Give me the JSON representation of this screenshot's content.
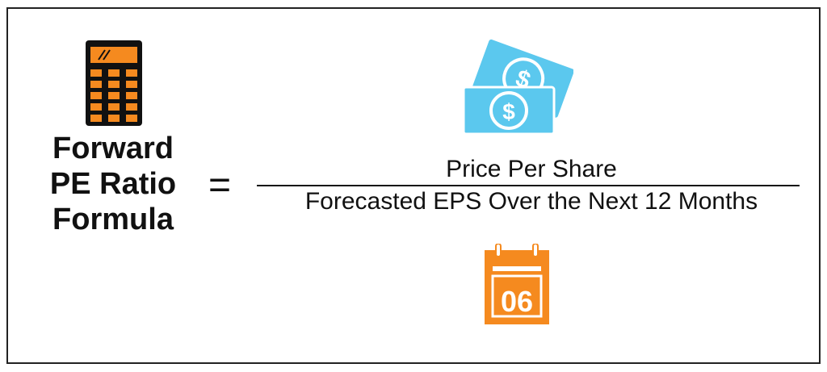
{
  "formula": {
    "lhs_lines": [
      "Forward",
      "PE Ratio",
      "Formula"
    ],
    "equals": "=",
    "numerator": "Price Per Share",
    "denominator": "Forecasted EPS Over the Next 12 Months"
  },
  "icons": {
    "calculator": "calculator-icon",
    "money": "money-bills-icon",
    "calendar": "calendar-icon",
    "calendar_day": "06",
    "dollar_sign": "$"
  },
  "colors": {
    "orange": "#F58A1F",
    "dark": "#111111",
    "blue": "#5BC8EE",
    "white": "#FFFFFF"
  }
}
